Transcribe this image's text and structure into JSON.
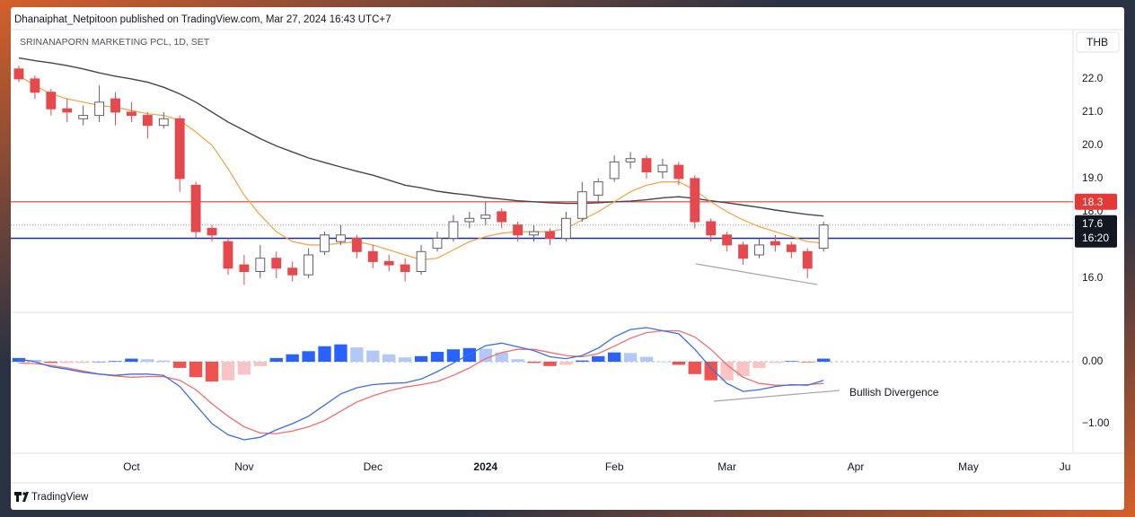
{
  "header": "Dhanaiphat_Netpitoon published on TradingView.com, Mar 27, 2024 16:43 UTC+7",
  "footer": "TradingView",
  "chart_data": [
    {
      "type": "candlestick",
      "title": "SRINANAPORN MARKETING PCL, 1D, SET",
      "currency": "THB",
      "categories": [
        null,
        null,
        null,
        null,
        null,
        null,
        null,
        "Oct",
        null,
        null,
        null,
        null,
        null,
        null,
        "Nov",
        null,
        null,
        null,
        null,
        null,
        null,
        null,
        "Dec",
        null,
        null,
        null,
        null,
        null,
        null,
        "2024",
        null,
        null,
        null,
        null,
        null,
        null,
        null,
        "Feb",
        null,
        null,
        null,
        null,
        null,
        null,
        "Mar",
        null,
        null,
        null,
        null,
        null,
        null,
        null,
        "Apr",
        null,
        null,
        null,
        null,
        null,
        null,
        "May",
        null,
        null,
        null,
        null,
        null,
        "Ju"
      ],
      "open": [
        22.3,
        22.0,
        21.6,
        21.1,
        20.8,
        20.9,
        21.4,
        21.0,
        20.9,
        20.6,
        20.8,
        18.8,
        17.5,
        17.1,
        16.4,
        16.2,
        16.6,
        16.3,
        16.1,
        16.8,
        17.1,
        17.2,
        16.8,
        16.5,
        16.4,
        16.2,
        16.9,
        17.2,
        17.7,
        17.8,
        18.0,
        17.6,
        17.3,
        17.4,
        17.2,
        17.8,
        18.5,
        19.0,
        19.5,
        19.6,
        19.2,
        19.4,
        19.0,
        17.7,
        17.3,
        17.0,
        16.7,
        17.1,
        17.0,
        16.8,
        16.9,
        null,
        null,
        null,
        null,
        null,
        null,
        null,
        null,
        null,
        null,
        null,
        null,
        null,
        null,
        null
      ],
      "high": [
        22.4,
        22.1,
        21.7,
        21.4,
        21.2,
        21.8,
        21.6,
        21.3,
        21.0,
        21.0,
        20.9,
        18.9,
        17.6,
        17.2,
        16.7,
        17.0,
        16.8,
        16.5,
        16.9,
        17.4,
        17.6,
        17.3,
        17.0,
        16.7,
        16.6,
        17.0,
        17.4,
        17.9,
        18.0,
        18.3,
        18.1,
        17.7,
        17.6,
        17.5,
        18.0,
        18.9,
        19.0,
        19.7,
        19.8,
        19.7,
        19.6,
        19.5,
        19.1,
        17.8,
        17.4,
        17.1,
        17.2,
        17.3,
        17.1,
        16.9,
        17.7,
        null,
        null,
        null,
        null,
        null,
        null,
        null,
        null,
        null,
        null,
        null,
        null,
        null,
        null,
        null
      ],
      "low": [
        21.9,
        21.4,
        20.9,
        20.7,
        20.6,
        20.7,
        20.6,
        20.7,
        20.2,
        20.5,
        18.6,
        17.2,
        17.1,
        16.1,
        15.8,
        16.0,
        16.0,
        15.9,
        16.0,
        16.7,
        17.0,
        16.6,
        16.3,
        16.2,
        15.9,
        16.1,
        16.8,
        17.1,
        17.5,
        17.6,
        17.5,
        17.1,
        17.1,
        17.0,
        17.1,
        17.7,
        18.3,
        18.9,
        19.3,
        19.0,
        19.0,
        18.8,
        17.5,
        17.1,
        16.8,
        16.4,
        16.6,
        16.8,
        16.6,
        16.0,
        16.8,
        null,
        null,
        null,
        null,
        null,
        null,
        null,
        null,
        null,
        null,
        null,
        null,
        null,
        null,
        null
      ],
      "close": [
        22.0,
        21.6,
        21.1,
        21.0,
        20.9,
        21.3,
        21.0,
        20.9,
        20.6,
        20.8,
        19.0,
        17.4,
        17.3,
        16.3,
        16.2,
        16.6,
        16.3,
        16.1,
        16.7,
        17.3,
        17.3,
        16.8,
        16.5,
        16.4,
        16.2,
        16.8,
        17.2,
        17.7,
        17.8,
        17.9,
        17.7,
        17.3,
        17.4,
        17.2,
        17.8,
        18.6,
        18.9,
        19.5,
        19.6,
        19.2,
        19.4,
        19.0,
        17.7,
        17.3,
        17.0,
        16.6,
        17.0,
        17.0,
        16.8,
        16.3,
        17.6,
        null,
        null,
        null,
        null,
        null,
        null,
        null,
        null,
        null,
        null,
        null,
        null,
        null,
        null,
        null
      ],
      "up_color": "#5d606b",
      "down_color": "#e5484d",
      "series": [
        {
          "color": "#434651",
          "values": [
            22.63,
            22.55,
            22.48,
            22.4,
            22.3,
            22.18,
            22.08,
            22.0,
            21.9,
            21.75,
            21.55,
            21.3,
            21.0,
            20.7,
            20.45,
            20.2,
            19.98,
            19.8,
            19.62,
            19.48,
            19.35,
            19.22,
            19.1,
            18.95,
            18.8,
            18.72,
            18.62,
            18.55,
            18.5,
            18.43,
            18.38,
            18.33,
            18.3,
            18.27,
            18.25,
            18.25,
            18.27,
            18.3,
            18.32,
            18.36,
            18.42,
            18.45,
            18.4,
            18.33,
            18.27,
            18.2,
            18.13,
            18.05,
            17.98,
            17.92,
            17.87,
            null,
            null,
            null,
            null,
            null,
            null,
            null,
            null,
            null,
            null,
            null,
            null,
            null,
            null,
            null
          ]
        },
        {
          "color": "#f5a145",
          "values": [
            22.1,
            21.8,
            21.55,
            21.4,
            21.3,
            21.2,
            21.15,
            21.05,
            20.95,
            20.9,
            20.75,
            20.4,
            20.0,
            19.3,
            18.5,
            17.9,
            17.4,
            17.1,
            17.0,
            17.0,
            17.05,
            17.1,
            17.0,
            16.85,
            16.7,
            16.55,
            16.6,
            16.85,
            17.1,
            17.25,
            17.35,
            17.4,
            17.4,
            17.4,
            17.5,
            17.75,
            18.0,
            18.3,
            18.6,
            18.8,
            18.9,
            18.9,
            18.65,
            18.3,
            18.0,
            17.75,
            17.55,
            17.4,
            17.25,
            17.1,
            17.05,
            null,
            null,
            null,
            null,
            null,
            null,
            null,
            null,
            null,
            null,
            null,
            null,
            null,
            null,
            null
          ]
        }
      ],
      "price_lines": [
        {
          "value": 18.3,
          "color": "#e53935"
        },
        {
          "value": 17.2,
          "color": "#1c2f93"
        }
      ],
      "last_price": {
        "value": 17.6,
        "countdown": "16:20",
        "color": "#131722"
      },
      "ylim": [
        14.97,
        23.43
      ],
      "yticks": [
        {
          "value": 22,
          "label": "22.0"
        },
        {
          "value": 21,
          "label": "21.0"
        },
        {
          "value": 20,
          "label": "20.0"
        },
        {
          "value": 19,
          "label": "19.0"
        },
        {
          "value": 18,
          "label": "18.0"
        },
        {
          "value": 16,
          "label": "16.0"
        }
      ]
    },
    {
      "type": "macd",
      "annotation": "Bullish Divergence",
      "macd": {
        "color": "#3d6fe0",
        "values": [
          0.04,
          0.0,
          -0.08,
          -0.12,
          -0.17,
          -0.2,
          -0.22,
          -0.2,
          -0.2,
          -0.22,
          -0.4,
          -0.7,
          -1.0,
          -1.18,
          -1.26,
          -1.22,
          -1.1,
          -1.0,
          -0.88,
          -0.7,
          -0.52,
          -0.42,
          -0.37,
          -0.35,
          -0.34,
          -0.28,
          -0.16,
          -0.02,
          0.12,
          0.26,
          0.3,
          0.24,
          0.18,
          0.08,
          0.05,
          0.1,
          0.22,
          0.4,
          0.52,
          0.55,
          0.5,
          0.45,
          0.2,
          -0.1,
          -0.35,
          -0.48,
          -0.45,
          -0.4,
          -0.37,
          -0.38,
          -0.3,
          null,
          null,
          null,
          null,
          null,
          null,
          null,
          null,
          null,
          null,
          null,
          null,
          null,
          null,
          null
        ]
      },
      "signal": {
        "color": "#f07070",
        "values": [
          -0.02,
          -0.03,
          -0.06,
          -0.1,
          -0.15,
          -0.2,
          -0.23,
          -0.25,
          -0.24,
          -0.24,
          -0.3,
          -0.45,
          -0.68,
          -0.88,
          -1.05,
          -1.15,
          -1.16,
          -1.12,
          -1.05,
          -0.95,
          -0.8,
          -0.65,
          -0.55,
          -0.47,
          -0.41,
          -0.37,
          -0.32,
          -0.22,
          -0.1,
          0.05,
          0.15,
          0.2,
          0.2,
          0.15,
          0.1,
          0.08,
          0.13,
          0.25,
          0.38,
          0.47,
          0.5,
          0.5,
          0.4,
          0.2,
          -0.05,
          -0.25,
          -0.35,
          -0.38,
          -0.38,
          -0.37,
          -0.35,
          null,
          null,
          null,
          null,
          null,
          null,
          null,
          null,
          null,
          null,
          null,
          null,
          null,
          null,
          null
        ]
      },
      "histogram": {
        "values": [
          0.06,
          0.03,
          -0.02,
          -0.02,
          -0.02,
          0,
          0.01,
          0.05,
          0.04,
          0.02,
          -0.1,
          -0.25,
          -0.32,
          -0.3,
          -0.21,
          -0.07,
          0.06,
          0.12,
          0.17,
          0.25,
          0.28,
          0.23,
          0.18,
          0.12,
          0.07,
          0.09,
          0.16,
          0.2,
          0.22,
          0.21,
          0.15,
          0.04,
          -0.02,
          -0.07,
          -0.05,
          0.02,
          0.09,
          0.15,
          0.14,
          0.08,
          0,
          -0.05,
          -0.2,
          -0.3,
          -0.3,
          -0.23,
          -0.1,
          -0.02,
          0.01,
          -0.01,
          0.05,
          null,
          null,
          null,
          null,
          null,
          null,
          null,
          null,
          null,
          null,
          null,
          null,
          null,
          null,
          null
        ],
        "colors": {
          "grow_above": "#2962ff",
          "fall_above": "#b2c8f7",
          "fall_below": "#ef5350",
          "grow_below": "#f8c4c6"
        }
      },
      "zero_line": true,
      "ylim": [
        -1.478,
        0.797
      ],
      "yticks": [
        {
          "value": 0,
          "label": "0.00"
        },
        {
          "value": -1,
          "label": "−1.00"
        }
      ]
    }
  ]
}
